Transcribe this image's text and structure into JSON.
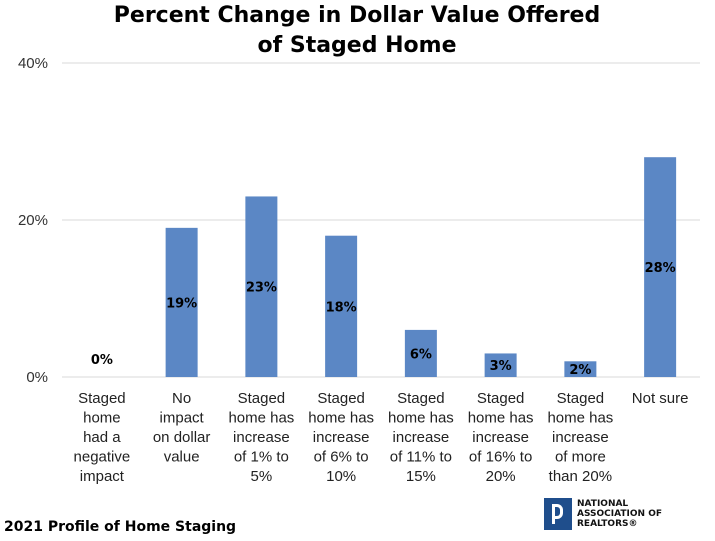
{
  "chart_data": {
    "type": "bar",
    "title": [
      "Percent Change in Dollar Value Offered",
      "of Staged Home"
    ],
    "categories": [
      [
        "Staged",
        "home",
        "had a",
        "negative",
        "impact"
      ],
      [
        "No",
        "impact",
        "on dollar",
        "value"
      ],
      [
        "Staged",
        "home has",
        "increase",
        "of 1% to",
        "5%"
      ],
      [
        "Staged",
        "home has",
        "increase",
        "of 6% to",
        "10%"
      ],
      [
        "Staged",
        "home has",
        "increase",
        "of 11% to",
        "15%"
      ],
      [
        "Staged",
        "home has",
        "increase",
        "of 16% to",
        "20%"
      ],
      [
        "Staged",
        "home has",
        "increase",
        "of more",
        "than 20%"
      ],
      [
        "Not sure"
      ]
    ],
    "values": [
      0,
      19,
      23,
      18,
      6,
      3,
      2,
      28
    ],
    "data_labels": [
      "0%",
      "19%",
      "23%",
      "18%",
      "6%",
      "3%",
      "2%",
      "28%"
    ],
    "ylim": [
      0,
      40
    ],
    "yticks": [
      {
        "value": 0,
        "label": "0%"
      },
      {
        "value": 20,
        "label": "20%"
      },
      {
        "value": 40,
        "label": "40%"
      }
    ],
    "grid": true,
    "bar_color": "#5b87c5",
    "grid_color": "#d9d9d9"
  },
  "footer": "2021 Profile of Home Staging",
  "logo": {
    "lines": [
      "NATIONAL",
      "ASSOCIATION OF",
      "REALTORS®"
    ],
    "color": "#1f4e8c"
  }
}
